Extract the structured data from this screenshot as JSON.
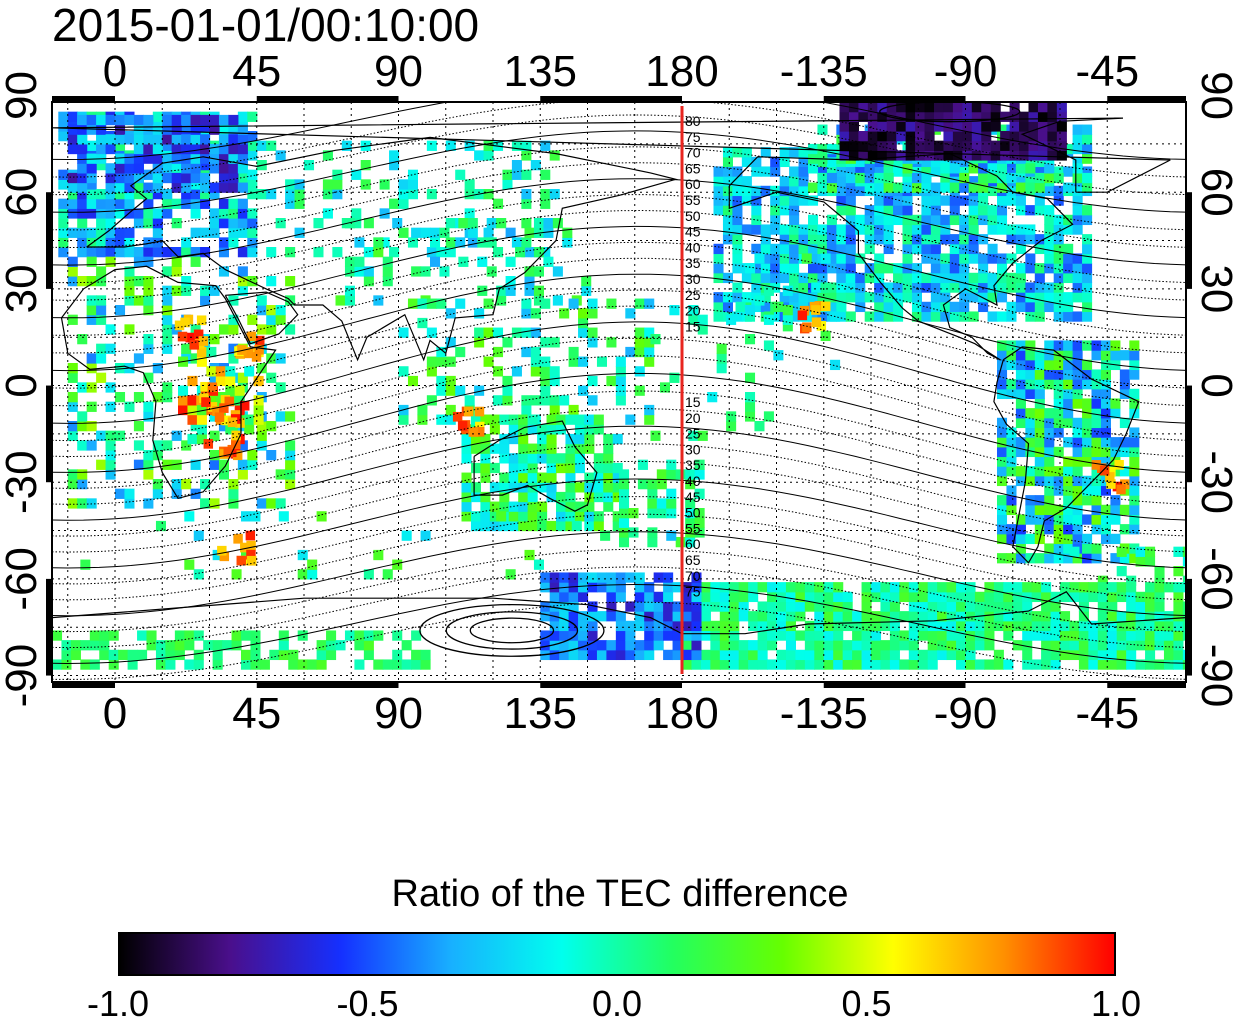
{
  "timestamp": "2015-01-01/00:10:00",
  "map": {
    "top_lon_ticks": [
      "0",
      "45",
      "90",
      "135",
      "180",
      "-135",
      "-90",
      "-45"
    ],
    "bottom_lon_ticks": [
      "0",
      "45",
      "90",
      "135",
      "180",
      "-135",
      "-90",
      "-45"
    ],
    "left_lat_ticks": [
      "90",
      "60",
      "30",
      "0",
      "-30",
      "-60",
      "-90"
    ],
    "right_lat_ticks": [
      "90",
      "60",
      "30",
      "0",
      "-30",
      "-60",
      "-90"
    ],
    "meridian_line_lon": 180,
    "meridian_line_color": "#e8251f",
    "contour_labels_north": [
      "80",
      "75",
      "70",
      "65",
      "60",
      "55",
      "50",
      "45",
      "40",
      "35",
      "30",
      "25",
      "20",
      "15"
    ],
    "contour_labels_south": [
      "15",
      "20",
      "25",
      "30",
      "35",
      "40",
      "45",
      "50",
      "55",
      "60",
      "65",
      "70",
      "75"
    ]
  },
  "colorbar": {
    "title": "Ratio of the TEC difference",
    "min": -1.0,
    "max": 1.0,
    "labels": [
      "-1.0",
      "-0.5",
      "0.0",
      "0.5",
      "1.0"
    ],
    "colors": [
      "#000000",
      "#4a0f8c",
      "#1530ff",
      "#18b0ff",
      "#00ffee",
      "#22ff60",
      "#66ff00",
      "#ffff00",
      "#ff9000",
      "#ff0000"
    ]
  }
}
